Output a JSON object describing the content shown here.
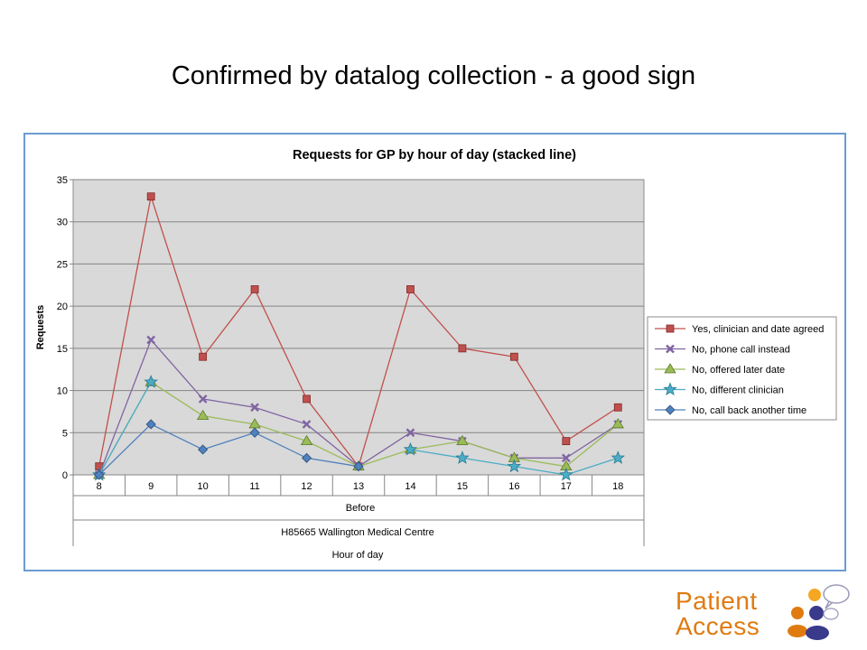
{
  "slide": {
    "title": "Confirmed by datalog collection - a good sign"
  },
  "chart_data": {
    "type": "line",
    "title": "Requests for GP by hour of day (stacked line)",
    "ylabel": "Requests",
    "xlabel": "Hour of day",
    "x_sublabels": [
      "Before",
      "H85665 Wallington Medical Centre"
    ],
    "categories": [
      "8",
      "9",
      "10",
      "11",
      "12",
      "13",
      "14",
      "15",
      "16",
      "17",
      "18"
    ],
    "ylim": [
      0,
      35
    ],
    "yticks": [
      0,
      5,
      10,
      15,
      20,
      25,
      30,
      35
    ],
    "grid": true,
    "legend_position": "right",
    "series": [
      {
        "name": "Yes, clinician and date agreed",
        "marker": "square",
        "color": "#c0504d",
        "values": [
          1,
          33,
          14,
          22,
          9,
          1,
          22,
          15,
          14,
          4,
          8
        ]
      },
      {
        "name": "No, phone call instead",
        "marker": "x",
        "color": "#8064a2",
        "values": [
          0,
          16,
          9,
          8,
          6,
          1,
          5,
          4,
          2,
          2,
          6
        ]
      },
      {
        "name": "No, offered later date",
        "marker": "triangle",
        "color": "#9bbb59",
        "values": [
          0,
          11,
          7,
          6,
          4,
          1,
          3,
          4,
          2,
          1,
          6
        ]
      },
      {
        "name": "No, different clinician",
        "marker": "star",
        "color": "#4bacc6",
        "values": [
          0,
          11,
          null,
          null,
          null,
          null,
          3,
          2,
          1,
          0,
          2
        ]
      },
      {
        "name": "No, call back another time",
        "marker": "diamond",
        "color": "#4f81bd",
        "values": [
          0,
          6,
          3,
          5,
          2,
          1,
          null,
          null,
          null,
          null,
          null
        ]
      }
    ]
  },
  "logo": {
    "line1": "Patient",
    "line2": "Access"
  }
}
